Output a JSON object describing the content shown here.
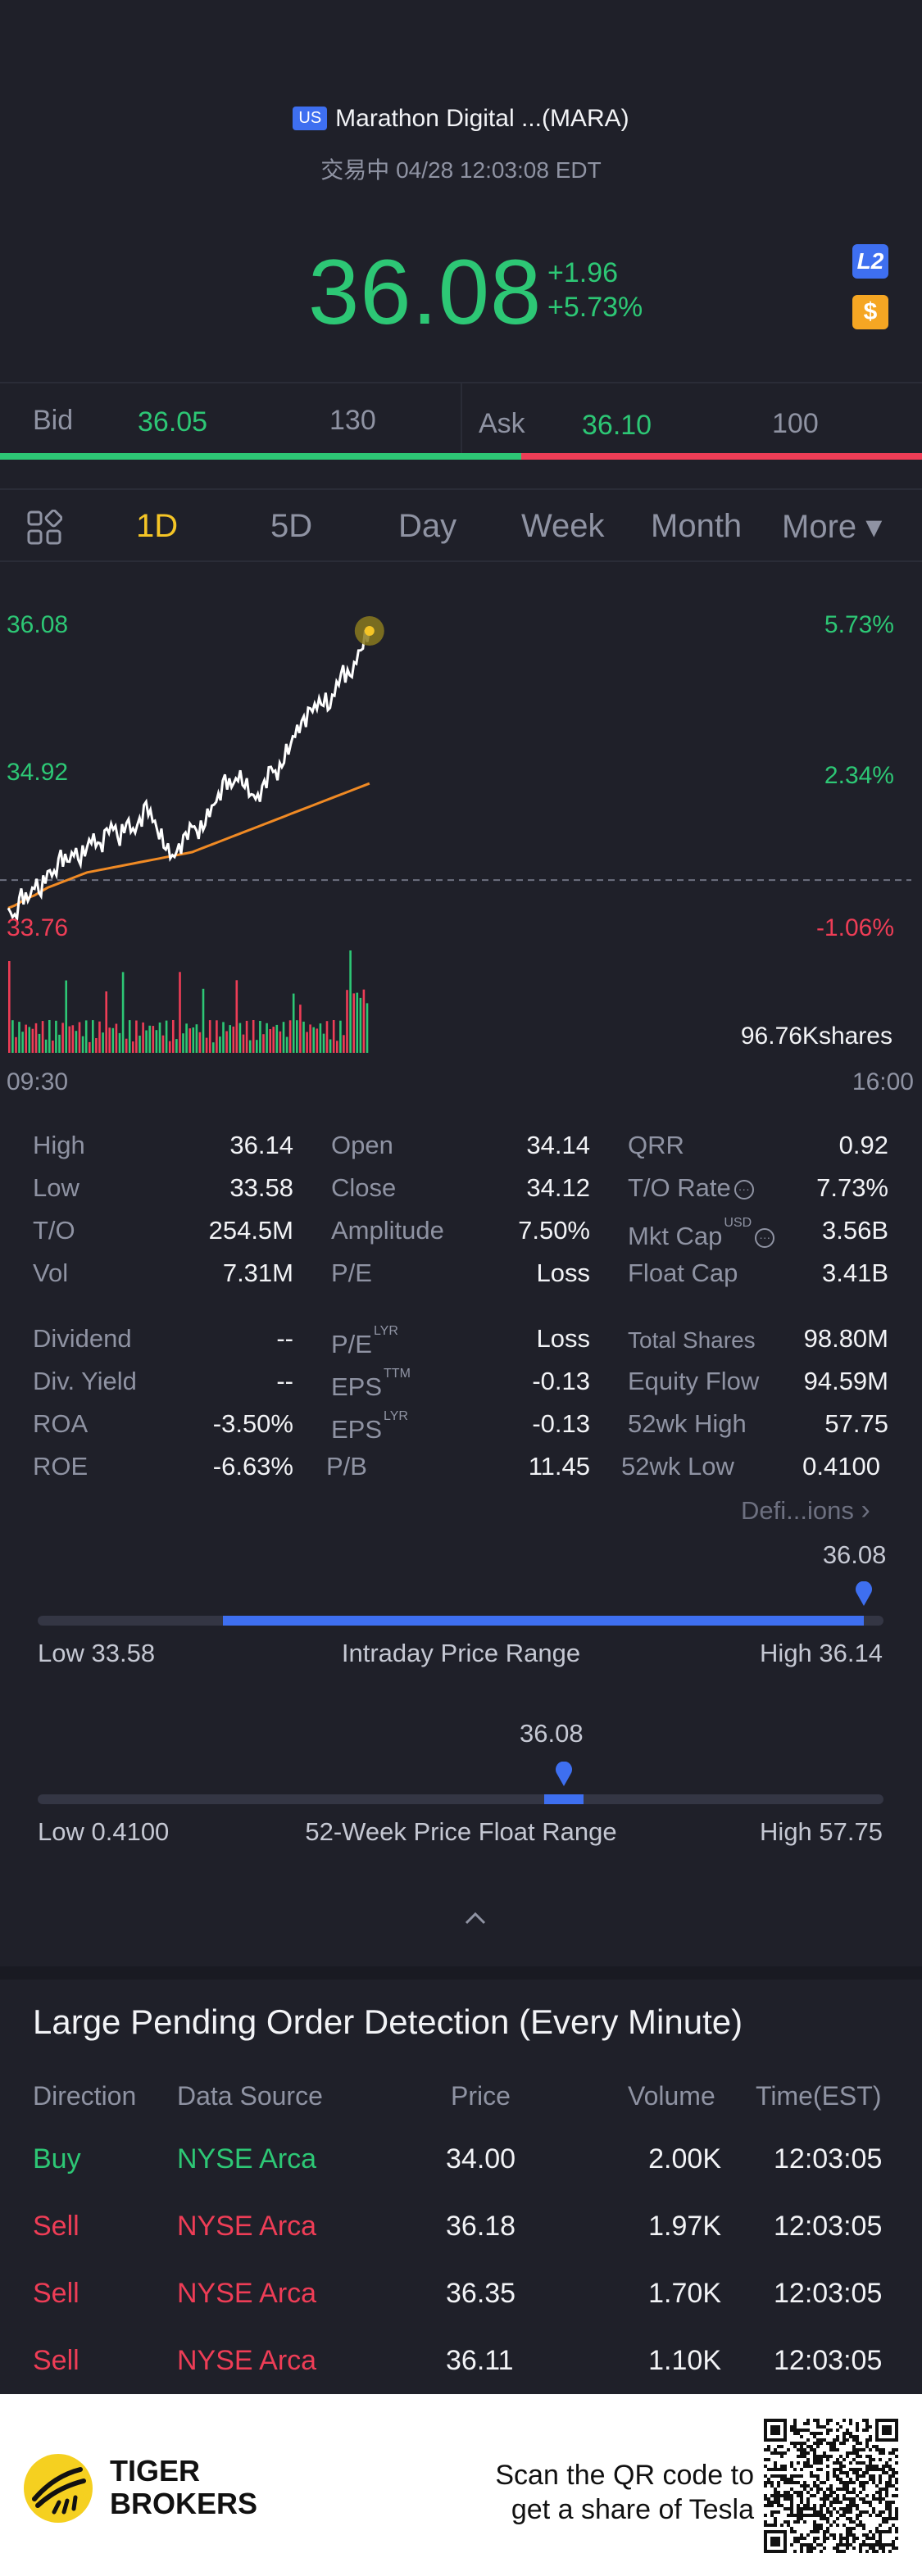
{
  "header": {
    "market_badge": "US",
    "title": "Marathon Digital ...(MARA)",
    "status": "交易中 04/28 12:03:08 EDT",
    "price": "36.08",
    "change": "+1.96",
    "change_pct": "+5.73%",
    "l2_icon": "L2",
    "dollar_icon": "$"
  },
  "quote": {
    "bid_label": "Bid",
    "bid_price": "36.05",
    "bid_size": "130",
    "ask_label": "Ask",
    "ask_price": "36.10",
    "ask_size": "100",
    "bid_ratio": 0.565
  },
  "tabs": [
    {
      "label": "1D",
      "active": true
    },
    {
      "label": "5D"
    },
    {
      "label": "Day"
    },
    {
      "label": "Week"
    },
    {
      "label": "Month"
    },
    {
      "label": "More ▾"
    }
  ],
  "chart_data": {
    "type": "line",
    "y_left_labels": [
      "36.08",
      "34.92",
      "33.76"
    ],
    "y_right_labels": [
      "5.73%",
      "2.34%",
      "-1.06%"
    ],
    "x_labels": [
      "09:30",
      "16:00"
    ],
    "volume_label": "96.76Kshares",
    "ylim": [
      33.76,
      36.08
    ],
    "prev_close": 34.12,
    "price_series": [
      33.9,
      33.8,
      34.0,
      33.95,
      34.1,
      34.05,
      34.2,
      34.15,
      34.3,
      34.25,
      34.35,
      34.3,
      34.4,
      34.45,
      34.35,
      34.5,
      34.55,
      34.45,
      34.6,
      34.5,
      34.55,
      34.7,
      34.6,
      34.5,
      34.4,
      34.3,
      34.35,
      34.45,
      34.55,
      34.5,
      34.6,
      34.7,
      34.75,
      34.9,
      34.85,
      34.95,
      34.9,
      34.8,
      34.75,
      34.85,
      35.0,
      34.95,
      35.1,
      35.2,
      35.3,
      35.35,
      35.45,
      35.5,
      35.55,
      35.5,
      35.65,
      35.75,
      35.7,
      35.85,
      36.0,
      36.08
    ],
    "avg_series": [
      33.9,
      33.92,
      33.95,
      33.98,
      34.0,
      34.03,
      34.06,
      34.08,
      34.1,
      34.12,
      34.14,
      34.16,
      34.18,
      34.19,
      34.2,
      34.21,
      34.22,
      34.23,
      34.24,
      34.25,
      34.26,
      34.27,
      34.28,
      34.29,
      34.3,
      34.31,
      34.32,
      34.33,
      34.34,
      34.36,
      34.38,
      34.4,
      34.42,
      34.44,
      34.46,
      34.48,
      34.5,
      34.52,
      34.54,
      34.56,
      34.58,
      34.6,
      34.62,
      34.64,
      34.66,
      34.68,
      34.7,
      34.72,
      34.74,
      34.76,
      34.78,
      34.8,
      34.82,
      34.84,
      34.86,
      34.88
    ]
  },
  "stats": {
    "col1": [
      {
        "label": "High",
        "value": "36.14"
      },
      {
        "label": "Low",
        "value": "33.58"
      },
      {
        "label": "T/O",
        "value": "254.5M"
      },
      {
        "label": "Vol",
        "value": "7.31M"
      },
      {
        "label": "Dividend",
        "value": "--"
      },
      {
        "label": "Div. Yield",
        "value": "--"
      },
      {
        "label": "ROA",
        "value": "-3.50%"
      },
      {
        "label": "ROE",
        "value": "-6.63%"
      }
    ],
    "col2": [
      {
        "label": "Open",
        "value": "34.14"
      },
      {
        "label": "Close",
        "value": "34.12"
      },
      {
        "label": "Amplitude",
        "value": "7.50%"
      },
      {
        "label": "P/E",
        "value": "Loss"
      },
      {
        "label": "P/E",
        "sup": "LYR",
        "value": "Loss"
      },
      {
        "label": "EPS",
        "sup": "TTM",
        "value": "-0.13"
      },
      {
        "label": "EPS",
        "sup": "LYR",
        "value": "-0.13"
      },
      {
        "label": "P/B",
        "value": "11.45"
      }
    ],
    "col3": [
      {
        "label": "QRR",
        "value": "0.92"
      },
      {
        "label": "T/O Rate",
        "value": "7.73%"
      },
      {
        "label": "Mkt Cap",
        "sup": "USD",
        "value": "3.56B"
      },
      {
        "label": "Float Cap",
        "value": "3.41B"
      },
      {
        "label": "Total Shares",
        "value": "98.80M"
      },
      {
        "label": "Equity Flow",
        "value": "94.59M"
      },
      {
        "label": "52wk High",
        "value": "57.75"
      },
      {
        "label": "52wk Low",
        "value": "0.4100"
      }
    ],
    "definitions_link": "Defi...ions"
  },
  "ranges": {
    "intraday": {
      "current": "36.08",
      "low_label": "Low 33.58",
      "title": "Intraday Price Range",
      "high_label": "High 36.14",
      "low": 33.58,
      "high": 36.14,
      "open": 34.14,
      "value": 36.08
    },
    "week52": {
      "current": "36.08",
      "low_label": "Low 0.4100",
      "title": "52-Week Price Float Range",
      "high_label": "High 57.75",
      "low": 0.41,
      "high": 57.75,
      "value": 36.08
    }
  },
  "pending_orders": {
    "title": "Large Pending Order Detection (Every Minute)",
    "headers": [
      "Direction",
      "Data Source",
      "Price",
      "Volume",
      "Time(EST)"
    ],
    "rows": [
      {
        "direction": "Buy",
        "source": "NYSE Arca",
        "price": "34.00",
        "volume": "2.00K",
        "time": "12:03:05",
        "color": "#2dc775"
      },
      {
        "direction": "Sell",
        "source": "NYSE Arca",
        "price": "36.18",
        "volume": "1.97K",
        "time": "12:03:05",
        "color": "#ee3d56"
      },
      {
        "direction": "Sell",
        "source": "NYSE Arca",
        "price": "36.35",
        "volume": "1.70K",
        "time": "12:03:05",
        "color": "#ee3d56"
      },
      {
        "direction": "Sell",
        "source": "NYSE Arca",
        "price": "36.11",
        "volume": "1.10K",
        "time": "12:03:05",
        "color": "#ee3d56"
      }
    ]
  },
  "footer": {
    "brand_line1": "TIGER",
    "brand_line2": "BROKERS",
    "scan_line1": "Scan the QR code to",
    "scan_line2": "get a share of Tesla"
  },
  "colors": {
    "up": "#2dc775",
    "down": "#ee3d56",
    "accent": "#3e6ff0",
    "tab_active": "#f5c526",
    "avg_line": "#f08a24"
  }
}
